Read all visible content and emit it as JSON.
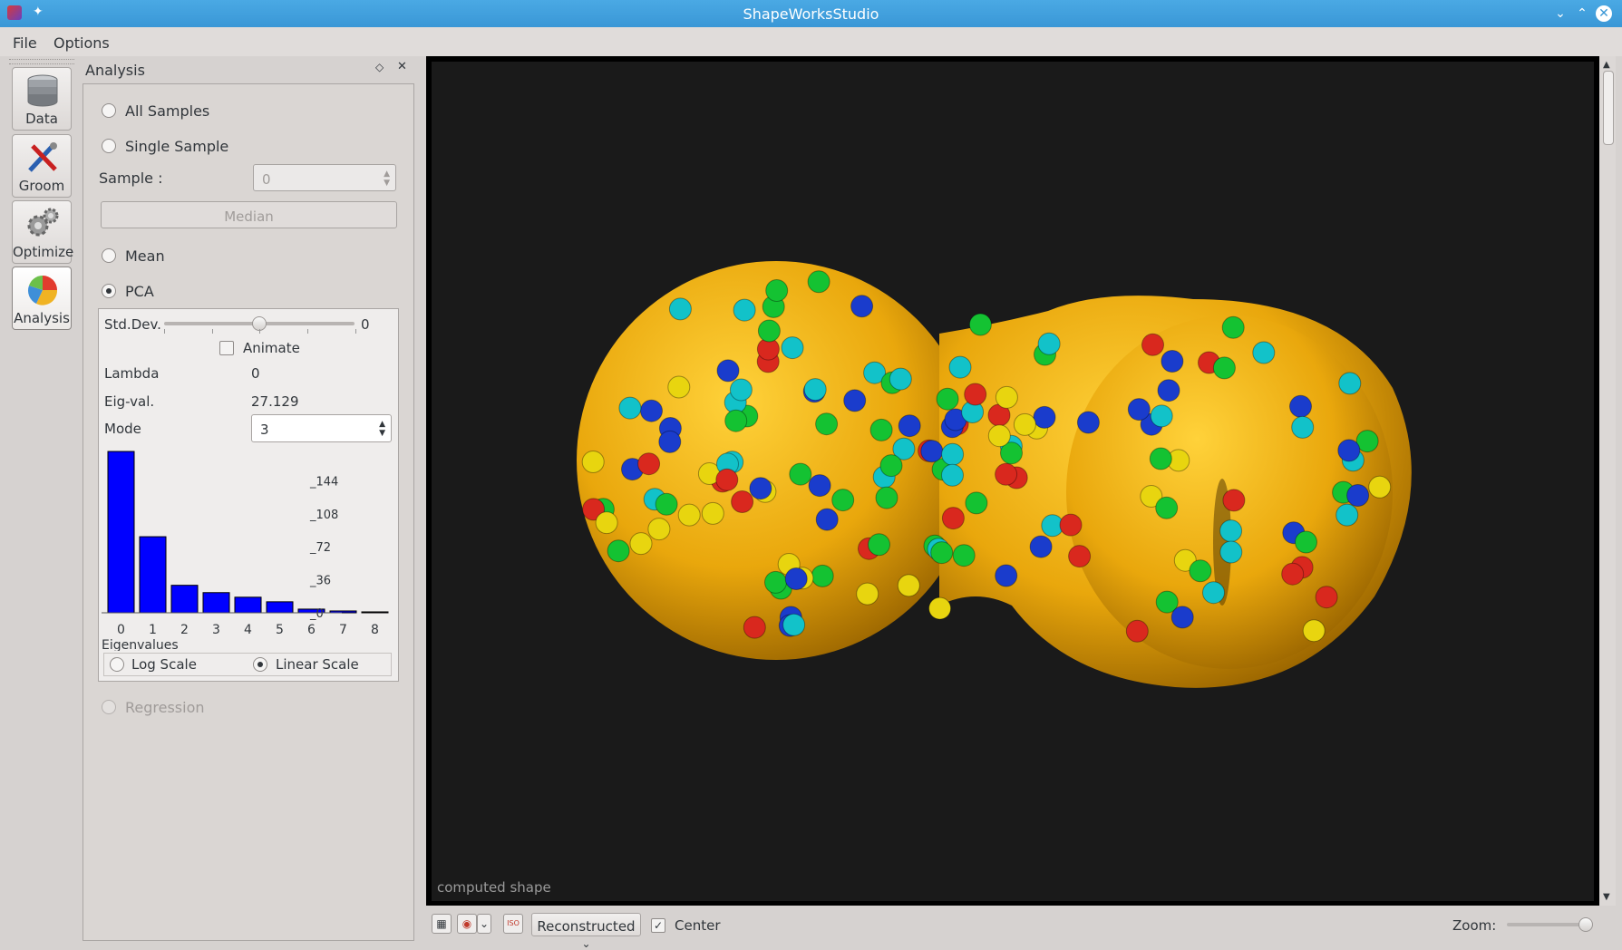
{
  "window": {
    "title": "ShapeWorksStudio"
  },
  "menu": {
    "items": [
      "File",
      "Options"
    ]
  },
  "tools": [
    {
      "label": "Data",
      "icon": "database-icon"
    },
    {
      "label": "Groom",
      "icon": "groom-tools-icon"
    },
    {
      "label": "Optimize",
      "icon": "gears-icon"
    },
    {
      "label": "Analysis",
      "icon": "pie-chart-icon"
    }
  ],
  "panel": {
    "title": "Analysis",
    "all_samples": "All Samples",
    "single_sample": "Single Sample",
    "sample_label": "Sample :",
    "sample_value": "0",
    "median_button": "Median",
    "mean": "Mean",
    "pca": "PCA",
    "regression": "Regression",
    "pca_box": {
      "std_dev_label": "Std.Dev.",
      "std_dev_value": "0",
      "animate_label": "Animate",
      "lambda_label": "Lambda",
      "lambda_value": "0",
      "eigval_label": "Eig-val.",
      "eigval_value": "27.129",
      "mode_label": "Mode",
      "mode_value": "3",
      "log_scale": "Log Scale",
      "linear_scale": "Linear Scale"
    }
  },
  "chart_data": {
    "type": "bar",
    "title": "",
    "xlabel": "Eigenvalues",
    "ylabel": "",
    "categories": [
      "0",
      "1",
      "2",
      "3",
      "4",
      "5",
      "6",
      "7",
      "8"
    ],
    "values": [
      176,
      83,
      30,
      22,
      17,
      12,
      4,
      2,
      1
    ],
    "yticks": [
      "144",
      "108",
      "72",
      "36",
      "0"
    ],
    "ylim": [
      0,
      180
    ],
    "bar_color": "#0000ff"
  },
  "viewer": {
    "caption": "computed shape",
    "view_mode": "Reconstructed",
    "center_label": "Center",
    "zoom_label": "Zoom:"
  }
}
